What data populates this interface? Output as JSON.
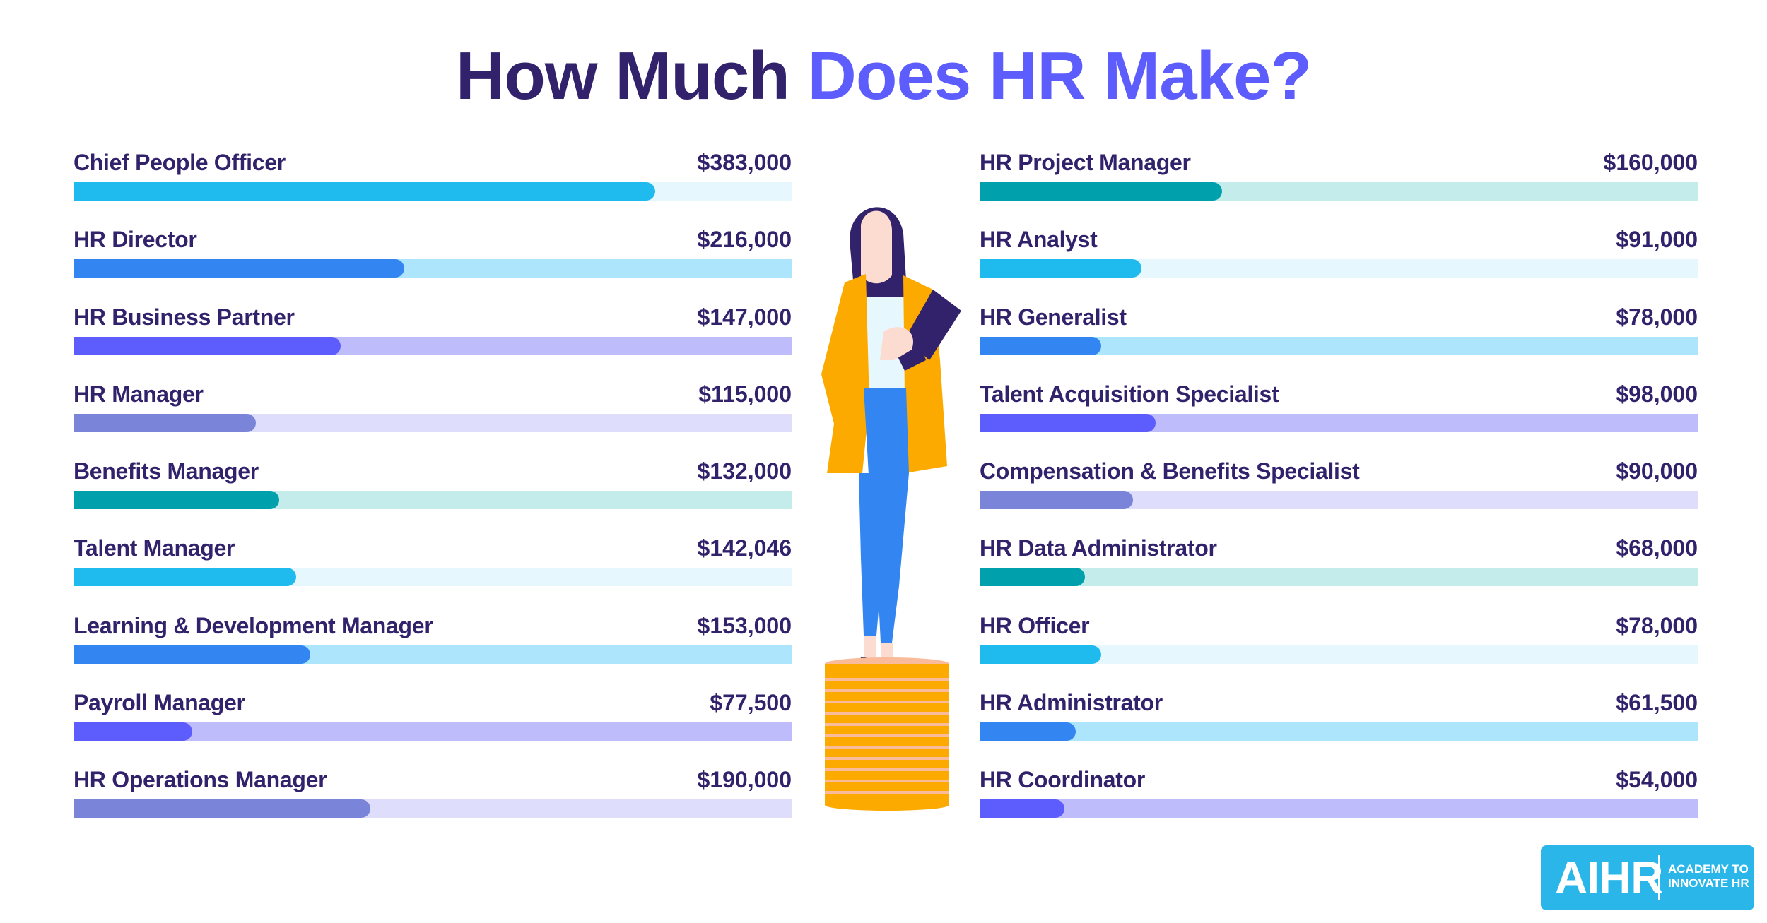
{
  "title": {
    "part1": "How Much",
    "part2": "Does HR Make?",
    "color_dark": "#31226b",
    "color_accent": "#5d5cfc"
  },
  "logo": {
    "mark": "AIHR",
    "line1": "ACADEMY TO",
    "line2": "INNOVATE HR",
    "bg": "#2bb6ea"
  },
  "illustration": {
    "description": "woman-standing-on-coin-stack"
  },
  "left": [
    {
      "label": "Chief People Officer",
      "value": "$383,000",
      "fill_pct": 81.0,
      "fill": "#1fbbef",
      "track": "#e6f8fd"
    },
    {
      "label": "HR Director",
      "value": "$216,000",
      "fill_pct": 46.1,
      "fill": "#3386f2",
      "track": "#ade6fc"
    },
    {
      "label": "HR Business Partner",
      "value": "$147,000",
      "fill_pct": 37.2,
      "fill": "#5d5cfc",
      "track": "#bfbcfc"
    },
    {
      "label": "HR Manager",
      "value": "$115,000",
      "fill_pct": 25.4,
      "fill": "#7a84d8",
      "track": "#dedefc"
    },
    {
      "label": "Benefits Manager",
      "value": "$132,000",
      "fill_pct": 28.6,
      "fill": "#00a0ad",
      "track": "#c4ecea"
    },
    {
      "label": "Talent Manager",
      "value": "$142,046",
      "fill_pct": 31.0,
      "fill": "#1fbbef",
      "track": "#e6f8fd"
    },
    {
      "label": "Learning & Development Manager",
      "value": "$153,000",
      "fill_pct": 33.0,
      "fill": "#3386f2",
      "track": "#ade6fc"
    },
    {
      "label": "Payroll Manager",
      "value": "$77,500",
      "fill_pct": 16.5,
      "fill": "#5d5cfc",
      "track": "#bfbcfc"
    },
    {
      "label": "HR Operations Manager",
      "value": "$190,000",
      "fill_pct": 41.3,
      "fill": "#7a84d8",
      "track": "#dedefc"
    }
  ],
  "right": [
    {
      "label": "HR Project Manager",
      "value": "$160,000",
      "fill_pct": 33.8,
      "fill": "#00a0ad",
      "track": "#c4ecea"
    },
    {
      "label": "HR Analyst",
      "value": "$91,000",
      "fill_pct": 22.5,
      "fill": "#1fbbef",
      "track": "#e6f8fd"
    },
    {
      "label": "HR Generalist",
      "value": "$78,000",
      "fill_pct": 16.9,
      "fill": "#3386f2",
      "track": "#ade6fc"
    },
    {
      "label": "Talent Acquisition Specialist",
      "value": "$98,000",
      "fill_pct": 24.5,
      "fill": "#5d5cfc",
      "track": "#bfbcfc"
    },
    {
      "label": "Compensation & Benefits Specialist",
      "value": "$90,000",
      "fill_pct": 21.4,
      "fill": "#7a84d8",
      "track": "#dedefc"
    },
    {
      "label": "HR Data Administrator",
      "value": "$68,000",
      "fill_pct": 14.7,
      "fill": "#00a0ad",
      "track": "#c4ecea"
    },
    {
      "label": "HR Officer",
      "value": "$78,000",
      "fill_pct": 16.9,
      "fill": "#1fbbef",
      "track": "#e6f8fd"
    },
    {
      "label": "HR Administrator",
      "value": "$61,500",
      "fill_pct": 13.4,
      "fill": "#3386f2",
      "track": "#ade6fc"
    },
    {
      "label": "HR Coordinator",
      "value": "$54,000",
      "fill_pct": 11.8,
      "fill": "#5d5cfc",
      "track": "#bfbcfc"
    }
  ],
  "chart_data": {
    "type": "bar",
    "title": "How Much Does HR Make?",
    "orientation": "horizontal",
    "xlabel": "",
    "ylabel": "",
    "unit": "USD per year",
    "categories": [
      "Chief People Officer",
      "HR Director",
      "HR Business Partner",
      "HR Manager",
      "Benefits Manager",
      "Talent Manager",
      "Learning & Development Manager",
      "Payroll Manager",
      "HR Operations Manager",
      "HR Project Manager",
      "HR Analyst",
      "HR Generalist",
      "Talent Acquisition Specialist",
      "Compensation & Benefits Specialist",
      "HR Data Administrator",
      "HR Officer",
      "HR Administrator",
      "HR Coordinator"
    ],
    "values": [
      383000,
      216000,
      147000,
      115000,
      132000,
      142046,
      153000,
      77500,
      190000,
      160000,
      91000,
      78000,
      98000,
      90000,
      68000,
      78000,
      61500,
      54000
    ],
    "labels": [
      "$383,000",
      "$216,000",
      "$147,000",
      "$115,000",
      "$132,000",
      "$142,046",
      "$153,000",
      "$77,500",
      "$190,000",
      "$160,000",
      "$91,000",
      "$78,000",
      "$98,000",
      "$90,000",
      "$68,000",
      "$78,000",
      "$61,500",
      "$54,000"
    ],
    "grid": false,
    "legend": null
  }
}
